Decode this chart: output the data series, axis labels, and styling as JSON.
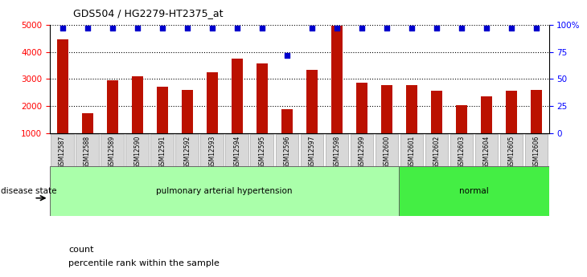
{
  "title": "GDS504 / HG2279-HT2375_at",
  "samples": [
    "GSM12587",
    "GSM12588",
    "GSM12589",
    "GSM12590",
    "GSM12591",
    "GSM12592",
    "GSM12593",
    "GSM12594",
    "GSM12595",
    "GSM12596",
    "GSM12597",
    "GSM12598",
    "GSM12599",
    "GSM12600",
    "GSM12601",
    "GSM12602",
    "GSM12603",
    "GSM12604",
    "GSM12605",
    "GSM12606"
  ],
  "counts": [
    4480,
    1720,
    2960,
    3100,
    2720,
    2600,
    3240,
    3760,
    3560,
    1870,
    3340,
    4970,
    2850,
    2760,
    2780,
    2560,
    2040,
    2360,
    2570,
    2590
  ],
  "percentile_ranks": [
    97,
    97,
    97,
    97,
    97,
    97,
    97,
    97,
    97,
    72,
    97,
    97,
    97,
    97,
    97,
    97,
    97,
    97,
    97,
    97
  ],
  "groups": [
    {
      "label": "pulmonary arterial hypertension",
      "start": 0,
      "end": 14,
      "color": "#aaffaa"
    },
    {
      "label": "normal",
      "start": 14,
      "end": 20,
      "color": "#44ee44"
    }
  ],
  "bar_color": "#bb1100",
  "dot_color": "#0000cc",
  "ylim_left": [
    1000,
    5000
  ],
  "ylim_right": [
    0,
    100
  ],
  "yticks_left": [
    1000,
    2000,
    3000,
    4000,
    5000
  ],
  "yticks_right": [
    0,
    25,
    50,
    75,
    100
  ],
  "ytick_right_labels": [
    "0",
    "25",
    "50",
    "75",
    "100%"
  ],
  "grid_values": [
    2000,
    3000,
    4000
  ],
  "disease_state_label": "disease state",
  "legend_count_label": "count",
  "legend_pct_label": "percentile rank within the sample",
  "background_color": "#ffffff",
  "plot_bg_color": "#ffffff"
}
